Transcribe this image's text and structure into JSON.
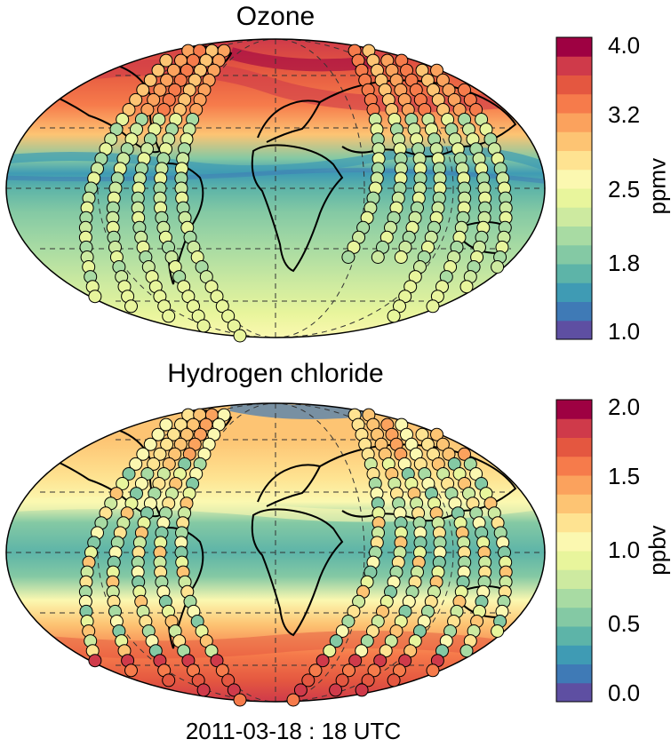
{
  "panels": [
    {
      "title": "Ozone",
      "colorbar": {
        "unit": "ppmv",
        "ticks": [
          "4.0",
          "3.2",
          "2.5",
          "1.8",
          "1.0"
        ]
      }
    },
    {
      "title": "Hydrogen chloride",
      "colorbar": {
        "unit": "ppbv",
        "ticks": [
          "2.0",
          "1.5",
          "1.0",
          "0.5",
          "0.0"
        ]
      }
    }
  ],
  "timestamp": "2011-03-18 : 18 UTC",
  "colors": {
    "spectral": [
      "#5e4fa2",
      "#3f7ab6",
      "#3f9bb4",
      "#5db4a8",
      "#84c9a4",
      "#a8dba3",
      "#cdeaa0",
      "#e8f59c",
      "#fbf8b0",
      "#fee391",
      "#fdc473",
      "#fba25d",
      "#f67b4b",
      "#e45740",
      "#cf3a4a",
      "#9e0142"
    ],
    "coast": "#000000",
    "grid": "#333333"
  },
  "icons": {
    "map_projection": "mollweide-world-map",
    "markers": "satellite-measurement-circle"
  }
}
